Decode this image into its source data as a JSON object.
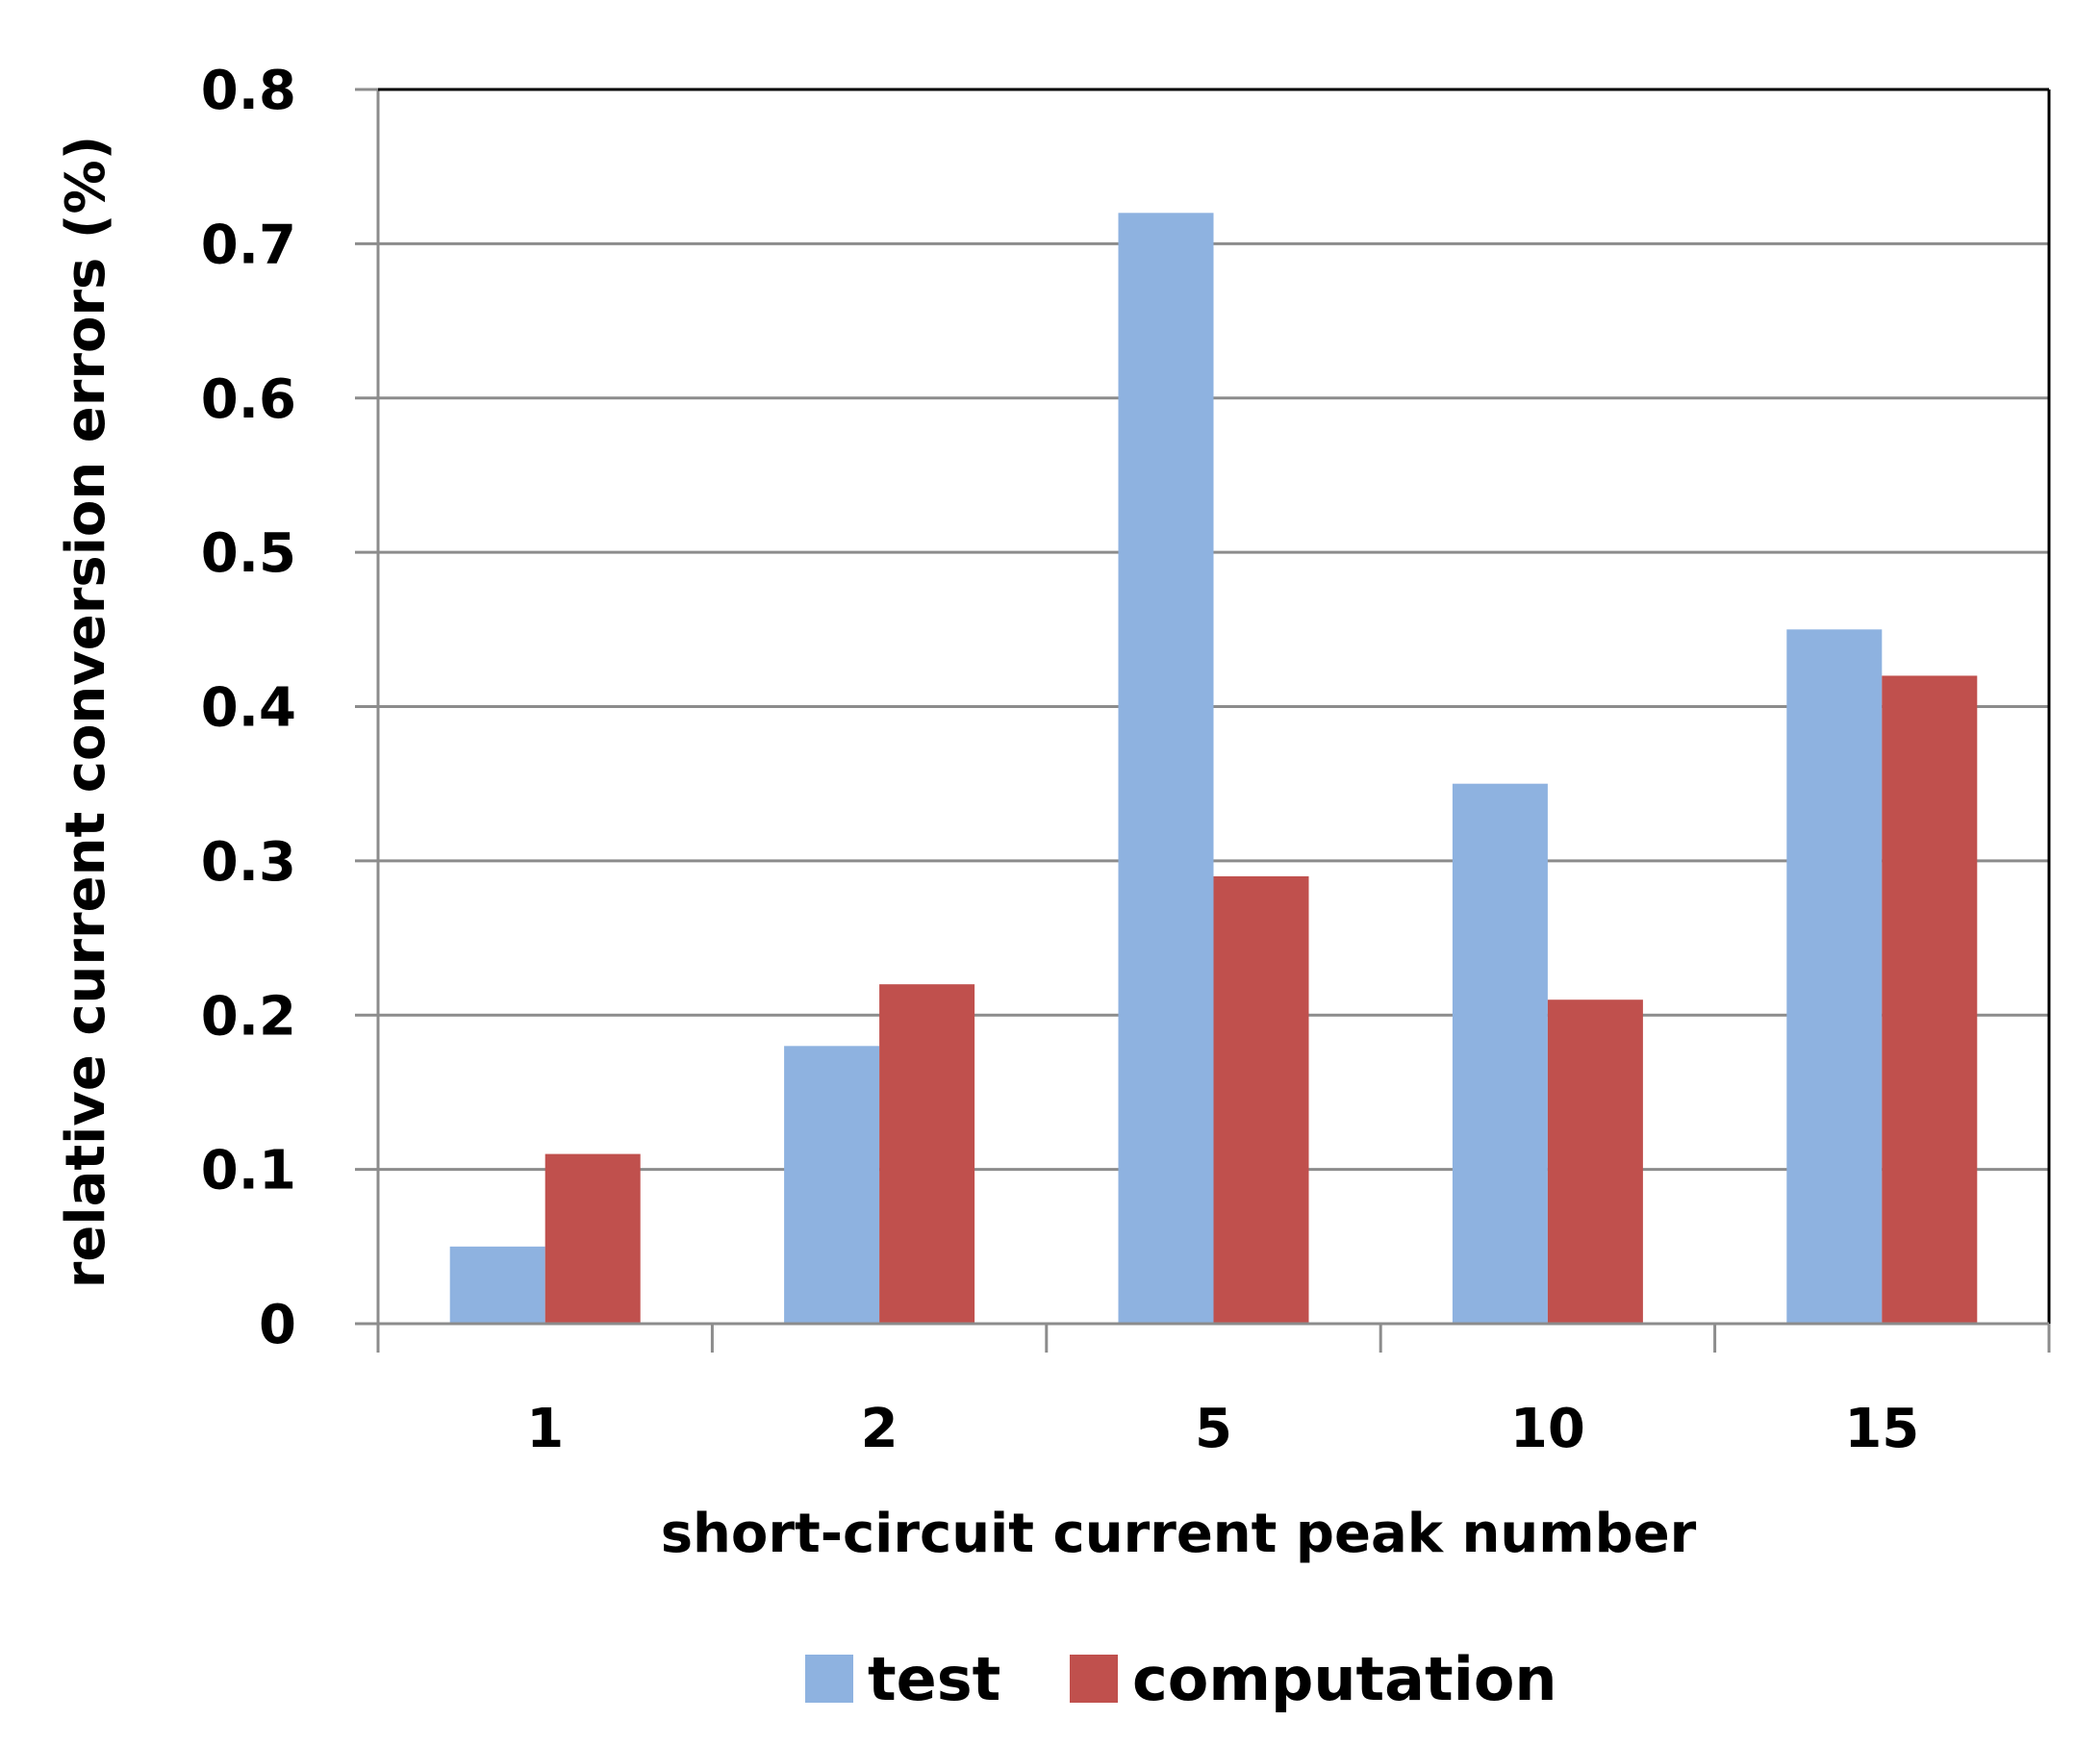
{
  "chart_data": {
    "type": "bar",
    "title": "",
    "xlabel": "short-circuit current peak number",
    "ylabel": "relative current conversion errors (%)",
    "categories": [
      "1",
      "2",
      "5",
      "10",
      "15"
    ],
    "series": [
      {
        "name": "test",
        "color": "#8EB2E0",
        "values": [
          0.05,
          0.18,
          0.72,
          0.35,
          0.45
        ]
      },
      {
        "name": "computation",
        "color": "#C0504D",
        "values": [
          0.11,
          0.22,
          0.29,
          0.21,
          0.42
        ]
      }
    ],
    "ylim": [
      0,
      0.8
    ],
    "yticks": [
      "0",
      "0.1",
      "0.2",
      "0.3",
      "0.4",
      "0.5",
      "0.6",
      "0.7",
      "0.8"
    ],
    "grid": true,
    "legend_position": "bottom"
  }
}
